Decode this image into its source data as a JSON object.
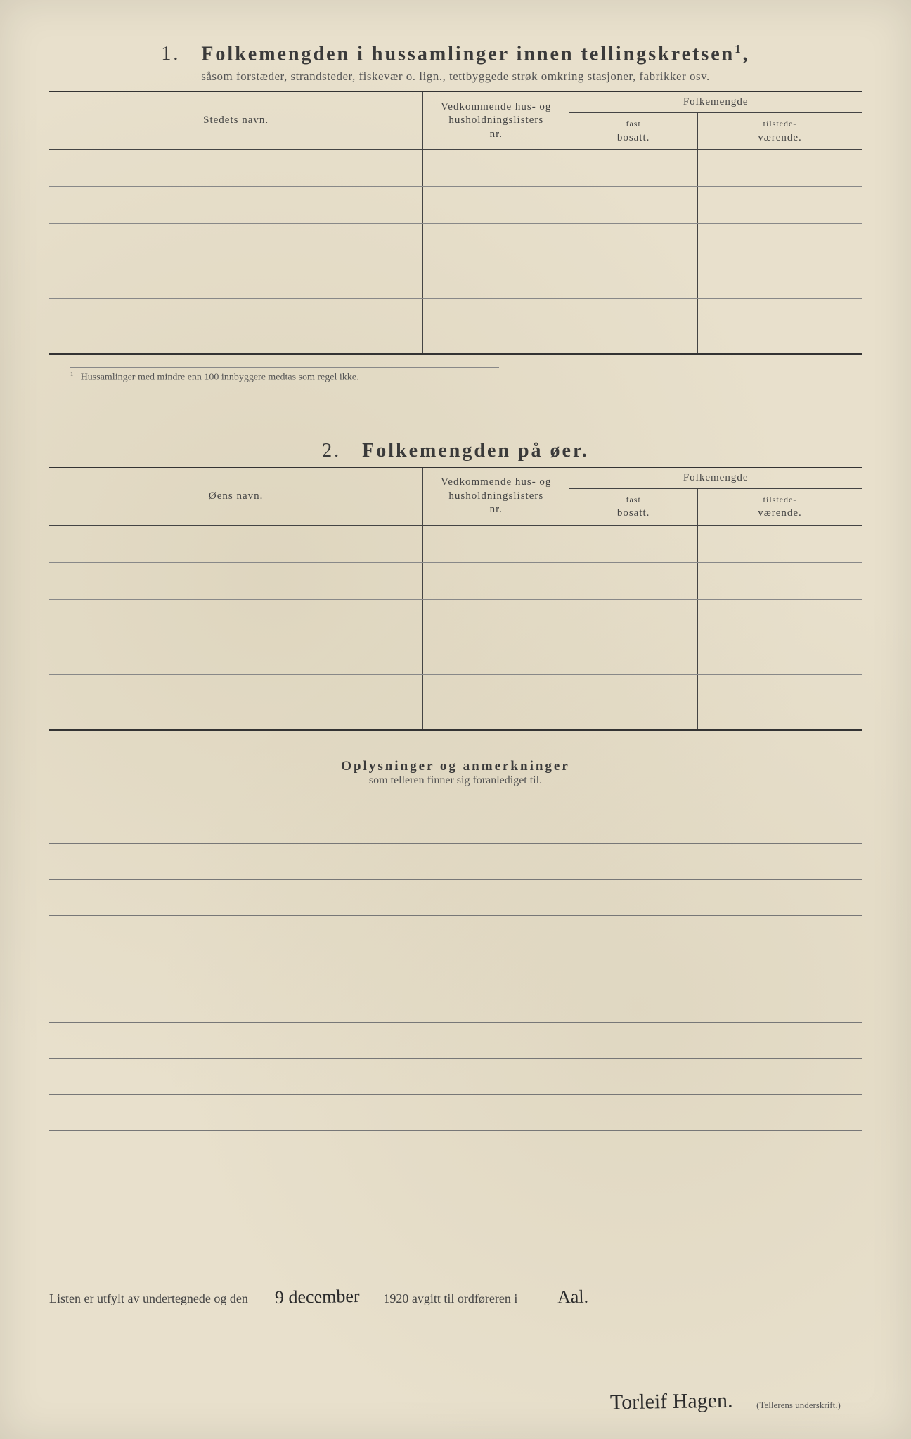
{
  "section1": {
    "number": "1.",
    "title": "Folkemengden i hussamlinger innen tellingskretsen",
    "title_sup": "1",
    "subtitle": "såsom forstæder, strandsteder, fiskevær o. lign., tettbyggede strøk omkring stasjoner, fabrikker osv.",
    "col_name": "Stedets navn.",
    "col_hus_l1": "Vedkommende hus- og",
    "col_hus_l2": "husholdningslisters",
    "col_hus_l3": "nr.",
    "col_folk": "Folkemengde",
    "col_fast_l1": "fast",
    "col_fast_l2": "bosatt.",
    "col_til_l1": "tilstede-",
    "col_til_l2": "værende.",
    "footnote_sup": "1",
    "footnote": "Hussamlinger med mindre enn 100 innbyggere medtas som regel ikke."
  },
  "section2": {
    "number": "2.",
    "title": "Folkemengden på øer.",
    "col_name": "Øens navn.",
    "col_hus_l1": "Vedkommende hus- og",
    "col_hus_l2": "husholdningslisters",
    "col_hus_l3": "nr.",
    "col_folk": "Folkemengde",
    "col_fast_l1": "fast",
    "col_fast_l2": "bosatt.",
    "col_til_l1": "tilstede-",
    "col_til_l2": "værende."
  },
  "section3": {
    "title": "Oplysninger og anmerkninger",
    "subtitle": "som telleren finner sig foranlediget til."
  },
  "bottom": {
    "text_before": "Listen er utfylt av undertegnede og den",
    "date_hand": "9 december",
    "year": "1920",
    "text_mid": "avgitt til ordføreren i",
    "place_hand": "Aal.",
    "signature_hand": "Torleif Hagen.",
    "sig_label": "(Tellerens underskrift.)"
  },
  "table_rows_1": 5,
  "table_rows_2": 5,
  "note_lines": 11
}
